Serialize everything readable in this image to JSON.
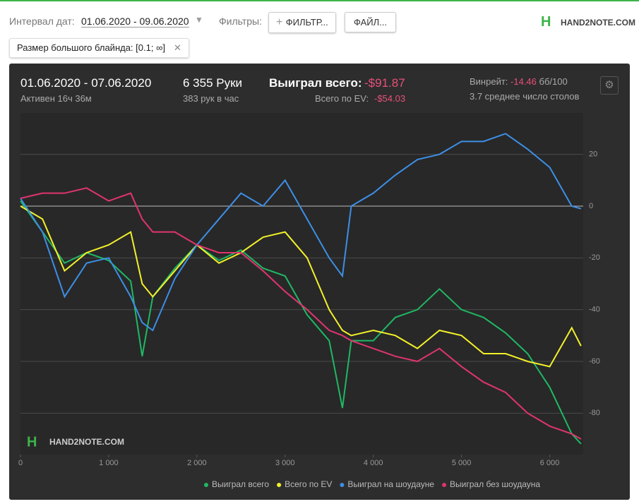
{
  "toolbar": {
    "date_label": "Интервал дат:",
    "date_range": "01.06.2020 - 09.06.2020",
    "filters_label": "Фильтры:",
    "filter_button": "ФИЛЬТР...",
    "file_button": "ФАЙЛ...",
    "logo": "HAND2NOTE.COM",
    "chip": "Размер большого блайнда: [0.1; ∞]"
  },
  "summary": {
    "period": "01.06.2020 - 07.06.2020",
    "active": "Активен 16ч 36м",
    "hands": "6 355 Руки",
    "hands_per_hour": "383 рук в час",
    "won_label": "Выиграл всего:",
    "won_value": "-$91.87",
    "ev_label": "Всего по EV:",
    "ev_value": "-$54.03",
    "winrate_label": "Винрейт:",
    "winrate_value": "-14.46",
    "winrate_unit": "бб/100",
    "tables": "3.7 среднее число столов",
    "watermark": "HAND2NOTE.COM"
  },
  "chart_data": {
    "type": "line",
    "x": [
      0,
      250,
      500,
      750,
      1000,
      1250,
      1380,
      1500,
      1750,
      2000,
      2250,
      2500,
      2750,
      3000,
      3250,
      3500,
      3650,
      3750,
      4000,
      4250,
      4500,
      4750,
      5000,
      5250,
      5500,
      5750,
      6000,
      6250,
      6355
    ],
    "series": [
      {
        "name": "Выиграл всего",
        "color": "#1fb864",
        "values": [
          2,
          -10,
          -22,
          -18,
          -21,
          -29,
          -58,
          -35,
          -24,
          -15,
          -21,
          -17,
          -24,
          -27,
          -42,
          -52,
          -78,
          -52,
          -52,
          -43,
          -40,
          -32,
          -40,
          -43,
          -49,
          -57,
          -70,
          -88,
          -91.87
        ]
      },
      {
        "name": "Всего по EV",
        "color": "#f2f02a",
        "values": [
          0,
          -5,
          -25,
          -18,
          -15,
          -10,
          -30,
          -35,
          -25,
          -15,
          -22,
          -18,
          -12,
          -10,
          -20,
          -40,
          -48,
          -50,
          -48,
          -50,
          -55,
          -48,
          -50,
          -57,
          -57,
          -60,
          -62,
          -47,
          -54.03
        ]
      },
      {
        "name": "Выиграл на шоудауне",
        "color": "#3d8fe6",
        "values": [
          3,
          -10,
          -35,
          -22,
          -20,
          -35,
          -45,
          -48,
          -28,
          -15,
          -5,
          5,
          0,
          10,
          -5,
          -20,
          -27,
          0,
          5,
          12,
          18,
          20,
          25,
          25,
          28,
          22,
          15,
          0,
          -1
        ]
      },
      {
        "name": "Выиграл без шоудауна",
        "color": "#e0346f",
        "values": [
          3,
          5,
          5,
          7,
          2,
          5,
          -5,
          -10,
          -10,
          -15,
          -18,
          -18,
          -25,
          -33,
          -40,
          -48,
          -50,
          -52,
          -55,
          -58,
          -60,
          -55,
          -62,
          -68,
          -72,
          -80,
          -85,
          -88,
          -90
        ]
      }
    ],
    "xlim": [
      0,
      6380
    ],
    "ylim": [
      -96,
      36
    ],
    "xticks": [
      0,
      {
        "value": 1000,
        "label": "1 000"
      },
      {
        "value": 2000,
        "label": "2 000"
      },
      {
        "value": 3000,
        "label": "3 000"
      },
      {
        "value": 4000,
        "label": "4 000"
      },
      {
        "value": 5000,
        "label": "5 000"
      },
      {
        "value": 6000,
        "label": "6 000"
      }
    ],
    "yticks": [
      20,
      0,
      -20,
      -40,
      -60,
      -80
    ],
    "grid": true
  }
}
